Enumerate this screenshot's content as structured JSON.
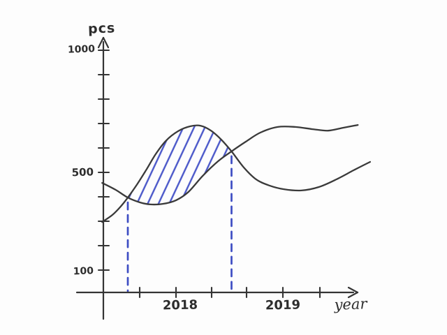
{
  "page": {
    "background": "#fdfdfd",
    "ink_color": "#383838",
    "accent_blue": "#4452c6"
  },
  "chart_data": {
    "type": "line",
    "title": "",
    "xlabel": "year",
    "ylabel": "pcs",
    "style": "hand-drawn",
    "grid": false,
    "legend": "none",
    "x_year_labels": [
      {
        "text": "2018"
      },
      {
        "text": "2019"
      }
    ],
    "y_tick_labels": [
      {
        "text": "1000",
        "value": 1000
      },
      {
        "text": "500",
        "value": 500
      },
      {
        "text": "100",
        "value": 100
      }
    ],
    "y_ticks": [
      100,
      200,
      300,
      400,
      500,
      600,
      700,
      800,
      900,
      1000
    ],
    "ylim": [
      0,
      1050
    ],
    "series": [
      {
        "name": "curve-1",
        "color": "#3a3a3a",
        "points": [
          [
            2017.24,
            457
          ],
          [
            2017.37,
            429
          ],
          [
            2017.49,
            397
          ],
          [
            2017.61,
            377
          ],
          [
            2017.71,
            369
          ],
          [
            2017.83,
            371
          ],
          [
            2017.96,
            386
          ],
          [
            2018.08,
            420
          ],
          [
            2018.22,
            486
          ],
          [
            2018.37,
            546
          ],
          [
            2018.5,
            586
          ],
          [
            2018.64,
            626
          ],
          [
            2018.78,
            663
          ],
          [
            2018.95,
            686
          ],
          [
            2019.12,
            686
          ],
          [
            2019.29,
            677
          ],
          [
            2019.44,
            671
          ],
          [
            2019.59,
            683
          ],
          [
            2019.73,
            694
          ]
        ]
      },
      {
        "name": "curve-2",
        "color": "#3a3a3a",
        "points": [
          [
            2017.24,
            297
          ],
          [
            2017.34,
            326
          ],
          [
            2017.42,
            360
          ],
          [
            2017.49,
            397
          ],
          [
            2017.58,
            451
          ],
          [
            2017.67,
            511
          ],
          [
            2017.76,
            574
          ],
          [
            2017.86,
            629
          ],
          [
            2017.98,
            669
          ],
          [
            2018.1,
            689
          ],
          [
            2018.2,
            691
          ],
          [
            2018.3,
            671
          ],
          [
            2018.4,
            634
          ],
          [
            2018.5,
            586
          ],
          [
            2018.62,
            520
          ],
          [
            2018.74,
            471
          ],
          [
            2018.87,
            446
          ],
          [
            2019.01,
            431
          ],
          [
            2019.18,
            426
          ],
          [
            2019.35,
            440
          ],
          [
            2019.52,
            471
          ],
          [
            2019.69,
            509
          ],
          [
            2019.85,
            543
          ]
        ]
      }
    ],
    "intersections": [
      {
        "year": 2017.49,
        "pcs": 397
      },
      {
        "year": 2018.5,
        "pcs": 586
      }
    ],
    "dashed_guides": {
      "color": "#3d4dc3",
      "description": "vertical dashed lines dropped from each curve intersection to the x-axis"
    },
    "shaded_region": {
      "type": "hatched",
      "hatch_color": "#4a57c9",
      "between_series": [
        "curve-1",
        "curve-2"
      ],
      "from_year": 2017.49,
      "to_year": 2018.5
    }
  }
}
